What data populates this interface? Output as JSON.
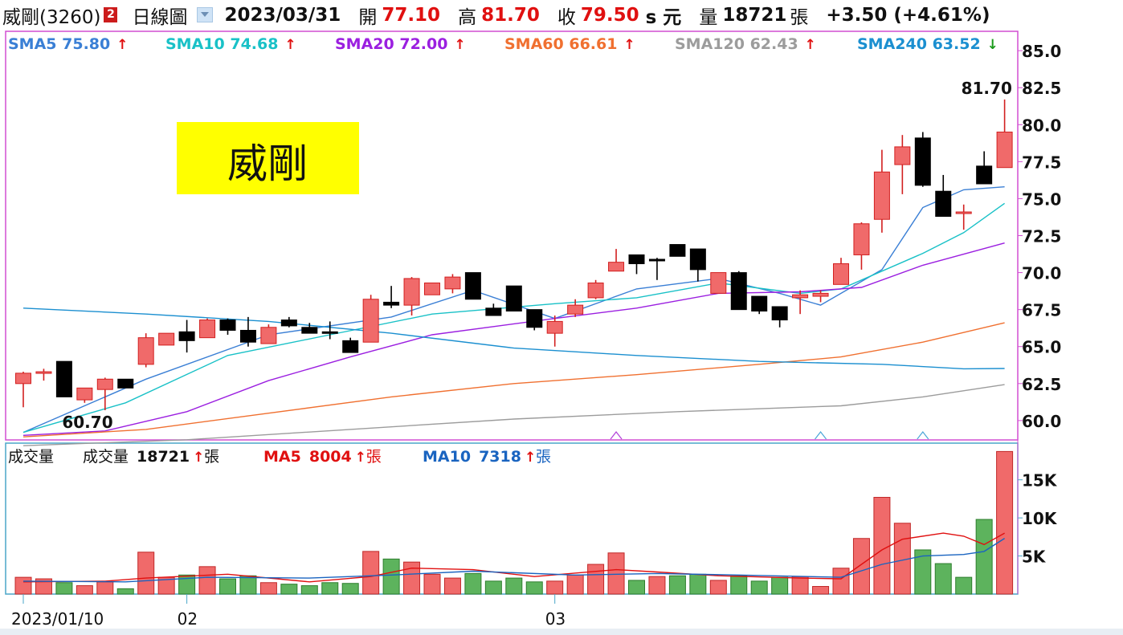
{
  "header": {
    "stock_name": "威剛(3260)",
    "badge": "2",
    "period": "日線圖",
    "date": "2023/03/31",
    "open_label": "開",
    "open": "77.10",
    "high_label": "高",
    "high": "81.70",
    "close_label": "收",
    "close": "79.50",
    "currency": "s 元",
    "volume_label": "量",
    "volume": "18721",
    "volume_unit": "張",
    "change": "+3.50 (+4.61%)"
  },
  "price_legend": [
    {
      "label": "SMA5 75.80",
      "color": "#3a7fd5",
      "arrow": "up"
    },
    {
      "label": "SMA10 74.68",
      "color": "#19c1c7",
      "arrow": "up"
    },
    {
      "label": "SMA20 72.00",
      "color": "#9b1fe0",
      "arrow": "up"
    },
    {
      "label": "SMA60 66.61",
      "color": "#f07030",
      "arrow": "up"
    },
    {
      "label": "SMA120 62.43",
      "color": "#9c9c9c",
      "arrow": "up"
    },
    {
      "label": "SMA240 63.52",
      "color": "#1b8fd0",
      "arrow": "down"
    }
  ],
  "volume_legend": {
    "title": "成交量",
    "items": [
      {
        "label": "成交量",
        "value": "18721",
        "unit": "張",
        "color": "#111111"
      },
      {
        "label": "MA5",
        "value": "8004",
        "unit": "張",
        "color": "#e01010"
      },
      {
        "label": "MA10",
        "value": "7318",
        "unit": "張",
        "color": "#1a64c0"
      }
    ]
  },
  "stock_title_box": "威剛",
  "colors": {
    "up": "#f06a6a",
    "up_border": "#d22020",
    "down": "#000000",
    "vol_up": "#f06a6a",
    "vol_down": "#5db35d",
    "frame": "#d24fd2",
    "arrow_up": "#e01010",
    "arrow_down": "#1a9a1a"
  },
  "chart_data": [
    {
      "type": "candlestick",
      "title": "威剛(3260) 日線圖",
      "ylim": [
        58.8,
        86.2
      ],
      "y_ticks": [
        "85.0",
        "82.5",
        "80.0",
        "77.5",
        "75.0",
        "72.5",
        "70.0",
        "67.5",
        "65.0",
        "62.5",
        "60.0"
      ],
      "x_labels": [
        {
          "index": 0,
          "label": "2023/01/10"
        },
        {
          "index": 8,
          "label": "02"
        },
        {
          "index": 26,
          "label": "03"
        }
      ],
      "annotations": [
        {
          "index": 3,
          "value": 60.7,
          "text": "60.70"
        },
        {
          "index": 48,
          "value": 81.7,
          "text": "81.70"
        }
      ],
      "candles": [
        {
          "o": 62.5,
          "h": 63.3,
          "l": 60.9,
          "c": 63.2
        },
        {
          "o": 63.2,
          "h": 63.5,
          "l": 62.7,
          "c": 63.3
        },
        {
          "o": 64.0,
          "h": 64.0,
          "l": 61.6,
          "c": 61.6
        },
        {
          "o": 61.4,
          "h": 62.2,
          "l": 61.2,
          "c": 62.2
        },
        {
          "o": 62.1,
          "h": 62.9,
          "l": 60.7,
          "c": 62.8
        },
        {
          "o": 62.8,
          "h": 62.8,
          "l": 62.2,
          "c": 62.2
        },
        {
          "o": 63.8,
          "h": 65.9,
          "l": 63.6,
          "c": 65.6
        },
        {
          "o": 65.1,
          "h": 65.9,
          "l": 65.1,
          "c": 65.9
        },
        {
          "o": 66.0,
          "h": 66.8,
          "l": 64.6,
          "c": 65.4
        },
        {
          "o": 65.6,
          "h": 66.9,
          "l": 65.6,
          "c": 66.8
        },
        {
          "o": 66.8,
          "h": 66.9,
          "l": 65.8,
          "c": 66.1
        },
        {
          "o": 66.1,
          "h": 67.0,
          "l": 65.0,
          "c": 65.3
        },
        {
          "o": 65.2,
          "h": 66.5,
          "l": 65.2,
          "c": 66.3
        },
        {
          "o": 66.8,
          "h": 67.0,
          "l": 66.3,
          "c": 66.4
        },
        {
          "o": 66.3,
          "h": 66.6,
          "l": 65.9,
          "c": 65.9
        },
        {
          "o": 66.0,
          "h": 66.7,
          "l": 65.5,
          "c": 65.9
        },
        {
          "o": 65.4,
          "h": 65.6,
          "l": 64.6,
          "c": 64.6
        },
        {
          "o": 65.3,
          "h": 68.5,
          "l": 65.3,
          "c": 68.2
        },
        {
          "o": 68.0,
          "h": 69.1,
          "l": 67.6,
          "c": 67.8
        },
        {
          "o": 67.8,
          "h": 69.7,
          "l": 67.1,
          "c": 69.6
        },
        {
          "o": 68.5,
          "h": 69.3,
          "l": 68.5,
          "c": 69.3
        },
        {
          "o": 68.9,
          "h": 69.9,
          "l": 68.6,
          "c": 69.7
        },
        {
          "o": 70.0,
          "h": 70.0,
          "l": 68.2,
          "c": 68.2
        },
        {
          "o": 67.6,
          "h": 67.9,
          "l": 67.1,
          "c": 67.1
        },
        {
          "o": 69.1,
          "h": 69.1,
          "l": 67.4,
          "c": 67.4
        },
        {
          "o": 67.5,
          "h": 67.5,
          "l": 66.1,
          "c": 66.3
        },
        {
          "o": 65.9,
          "h": 67.1,
          "l": 65.0,
          "c": 66.7
        },
        {
          "o": 67.2,
          "h": 68.2,
          "l": 67.0,
          "c": 67.8
        },
        {
          "o": 68.3,
          "h": 69.5,
          "l": 68.2,
          "c": 69.3
        },
        {
          "o": 70.1,
          "h": 71.6,
          "l": 70.1,
          "c": 70.7
        },
        {
          "o": 71.2,
          "h": 71.2,
          "l": 69.9,
          "c": 70.6
        },
        {
          "o": 70.9,
          "h": 71.0,
          "l": 69.5,
          "c": 70.8
        },
        {
          "o": 71.9,
          "h": 71.9,
          "l": 71.1,
          "c": 71.1
        },
        {
          "o": 71.6,
          "h": 71.6,
          "l": 69.4,
          "c": 70.2
        },
        {
          "o": 68.6,
          "h": 70.0,
          "l": 68.6,
          "c": 70.0
        },
        {
          "o": 70.0,
          "h": 70.1,
          "l": 67.5,
          "c": 67.5
        },
        {
          "o": 68.4,
          "h": 68.4,
          "l": 67.2,
          "c": 67.4
        },
        {
          "o": 67.7,
          "h": 67.7,
          "l": 66.3,
          "c": 66.8
        },
        {
          "o": 68.3,
          "h": 68.8,
          "l": 67.2,
          "c": 68.5
        },
        {
          "o": 68.4,
          "h": 68.8,
          "l": 68.0,
          "c": 68.6
        },
        {
          "o": 69.2,
          "h": 71.0,
          "l": 69.2,
          "c": 70.6
        },
        {
          "o": 71.2,
          "h": 73.4,
          "l": 70.2,
          "c": 73.3
        },
        {
          "o": 73.6,
          "h": 78.3,
          "l": 72.7,
          "c": 76.8
        },
        {
          "o": 77.3,
          "h": 79.3,
          "l": 75.3,
          "c": 78.5
        },
        {
          "o": 79.1,
          "h": 79.5,
          "l": 75.8,
          "c": 75.9
        },
        {
          "o": 75.5,
          "h": 76.6,
          "l": 73.8,
          "c": 73.8
        },
        {
          "o": 74.1,
          "h": 74.6,
          "l": 72.9,
          "c": 74.1
        },
        {
          "o": 77.2,
          "h": 78.2,
          "l": 76.0,
          "c": 76.0
        },
        {
          "o": 77.1,
          "h": 81.7,
          "l": 77.1,
          "c": 79.5
        }
      ],
      "series": [
        {
          "name": "SMA5",
          "color": "#3a7fd5",
          "points": [
            [
              0,
              59.2
            ],
            [
              6,
              62.8
            ],
            [
              12,
              65.8
            ],
            [
              18,
              67.0
            ],
            [
              22,
              68.8
            ],
            [
              26,
              66.9
            ],
            [
              30,
              68.9
            ],
            [
              34,
              69.6
            ],
            [
              37,
              68.6
            ],
            [
              39,
              67.8
            ],
            [
              42,
              70.2
            ],
            [
              44,
              74.4
            ],
            [
              46,
              75.6
            ],
            [
              48,
              75.8
            ]
          ]
        },
        {
          "name": "SMA10",
          "color": "#19c1c7",
          "points": [
            [
              0,
              59.2
            ],
            [
              5,
              61.2
            ],
            [
              10,
              64.4
            ],
            [
              15,
              65.8
            ],
            [
              20,
              67.2
            ],
            [
              26,
              67.9
            ],
            [
              30,
              68.3
            ],
            [
              34,
              69.3
            ],
            [
              38,
              68.6
            ],
            [
              40,
              68.9
            ],
            [
              44,
              71.3
            ],
            [
              46,
              72.7
            ],
            [
              48,
              74.68
            ]
          ]
        },
        {
          "name": "SMA20",
          "color": "#9b1fe0",
          "points": [
            [
              0,
              59.0
            ],
            [
              4,
              59.3
            ],
            [
              8,
              60.6
            ],
            [
              12,
              62.7
            ],
            [
              16,
              64.3
            ],
            [
              20,
              65.8
            ],
            [
              26,
              66.9
            ],
            [
              30,
              67.6
            ],
            [
              34,
              68.6
            ],
            [
              38,
              68.7
            ],
            [
              41,
              69.0
            ],
            [
              44,
              70.5
            ],
            [
              48,
              72.0
            ]
          ]
        },
        {
          "name": "SMA60",
          "color": "#f07030",
          "points": [
            [
              0,
              58.9
            ],
            [
              6,
              59.4
            ],
            [
              12,
              60.5
            ],
            [
              18,
              61.6
            ],
            [
              24,
              62.5
            ],
            [
              30,
              63.1
            ],
            [
              36,
              63.8
            ],
            [
              40,
              64.3
            ],
            [
              44,
              65.3
            ],
            [
              48,
              66.61
            ]
          ]
        },
        {
          "name": "SMA120",
          "color": "#9c9c9c",
          "points": [
            [
              0,
              58.3
            ],
            [
              8,
              58.7
            ],
            [
              16,
              59.4
            ],
            [
              24,
              60.1
            ],
            [
              32,
              60.6
            ],
            [
              40,
              61.0
            ],
            [
              44,
              61.6
            ],
            [
              48,
              62.43
            ]
          ]
        },
        {
          "name": "SMA240",
          "color": "#1b8fd0",
          "points": [
            [
              0,
              67.6
            ],
            [
              6,
              67.2
            ],
            [
              12,
              66.7
            ],
            [
              18,
              65.9
            ],
            [
              24,
              64.9
            ],
            [
              30,
              64.4
            ],
            [
              36,
              64.0
            ],
            [
              42,
              63.8
            ],
            [
              46,
              63.5
            ],
            [
              48,
              63.52
            ]
          ]
        }
      ],
      "markers": [
        {
          "index": 29,
          "type": "triangle"
        },
        {
          "index": 39,
          "type": "triangle"
        },
        {
          "index": 44,
          "type": "triangle"
        }
      ]
    },
    {
      "type": "bar",
      "title": "成交量",
      "ylim": [
        0,
        19500
      ],
      "y_ticks": [
        {
          "value": 15000,
          "label": "15K"
        },
        {
          "value": 10000,
          "label": "10K"
        },
        {
          "value": 5000,
          "label": "5K"
        }
      ],
      "values": [
        2200,
        2000,
        1500,
        1100,
        1600,
        700,
        5500,
        2200,
        2500,
        3600,
        2000,
        2400,
        1500,
        1300,
        1100,
        1500,
        1400,
        5600,
        4600,
        4200,
        2600,
        2100,
        2700,
        1700,
        2100,
        1600,
        1700,
        2500,
        3900,
        5400,
        1800,
        2300,
        2400,
        2600,
        1800,
        2400,
        1700,
        2200,
        2300,
        1000,
        3400,
        7300,
        12700,
        9300,
        5800,
        4000,
        2200,
        9800,
        18721
      ],
      "up": [
        true,
        true,
        false,
        true,
        true,
        false,
        true,
        true,
        false,
        true,
        false,
        false,
        true,
        false,
        false,
        false,
        false,
        true,
        false,
        true,
        true,
        true,
        false,
        false,
        false,
        false,
        true,
        true,
        true,
        true,
        false,
        true,
        false,
        false,
        true,
        false,
        false,
        false,
        true,
        true,
        true,
        true,
        true,
        true,
        false,
        false,
        false,
        false,
        true
      ],
      "series": [
        {
          "name": "MA5",
          "color": "#e01010",
          "points": [
            [
              0,
              1600
            ],
            [
              4,
              1700
            ],
            [
              6,
              2100
            ],
            [
              10,
              2600
            ],
            [
              14,
              1600
            ],
            [
              17,
              2300
            ],
            [
              19,
              3400
            ],
            [
              22,
              3200
            ],
            [
              25,
              2300
            ],
            [
              29,
              3200
            ],
            [
              31,
              2900
            ],
            [
              34,
              2400
            ],
            [
              38,
              2100
            ],
            [
              40,
              2000
            ],
            [
              42,
              5800
            ],
            [
              43,
              7200
            ],
            [
              45,
              8000
            ],
            [
              46,
              7600
            ],
            [
              47,
              6500
            ],
            [
              48,
              8004
            ]
          ]
        },
        {
          "name": "MA10",
          "color": "#1a64c0",
          "points": [
            [
              0,
              1700
            ],
            [
              5,
              1600
            ],
            [
              9,
              2200
            ],
            [
              14,
              2100
            ],
            [
              18,
              2500
            ],
            [
              22,
              3000
            ],
            [
              27,
              2500
            ],
            [
              31,
              2700
            ],
            [
              35,
              2500
            ],
            [
              40,
              2200
            ],
            [
              42,
              3900
            ],
            [
              44,
              5000
            ],
            [
              46,
              5200
            ],
            [
              47,
              5600
            ],
            [
              48,
              7318
            ]
          ]
        }
      ]
    }
  ]
}
